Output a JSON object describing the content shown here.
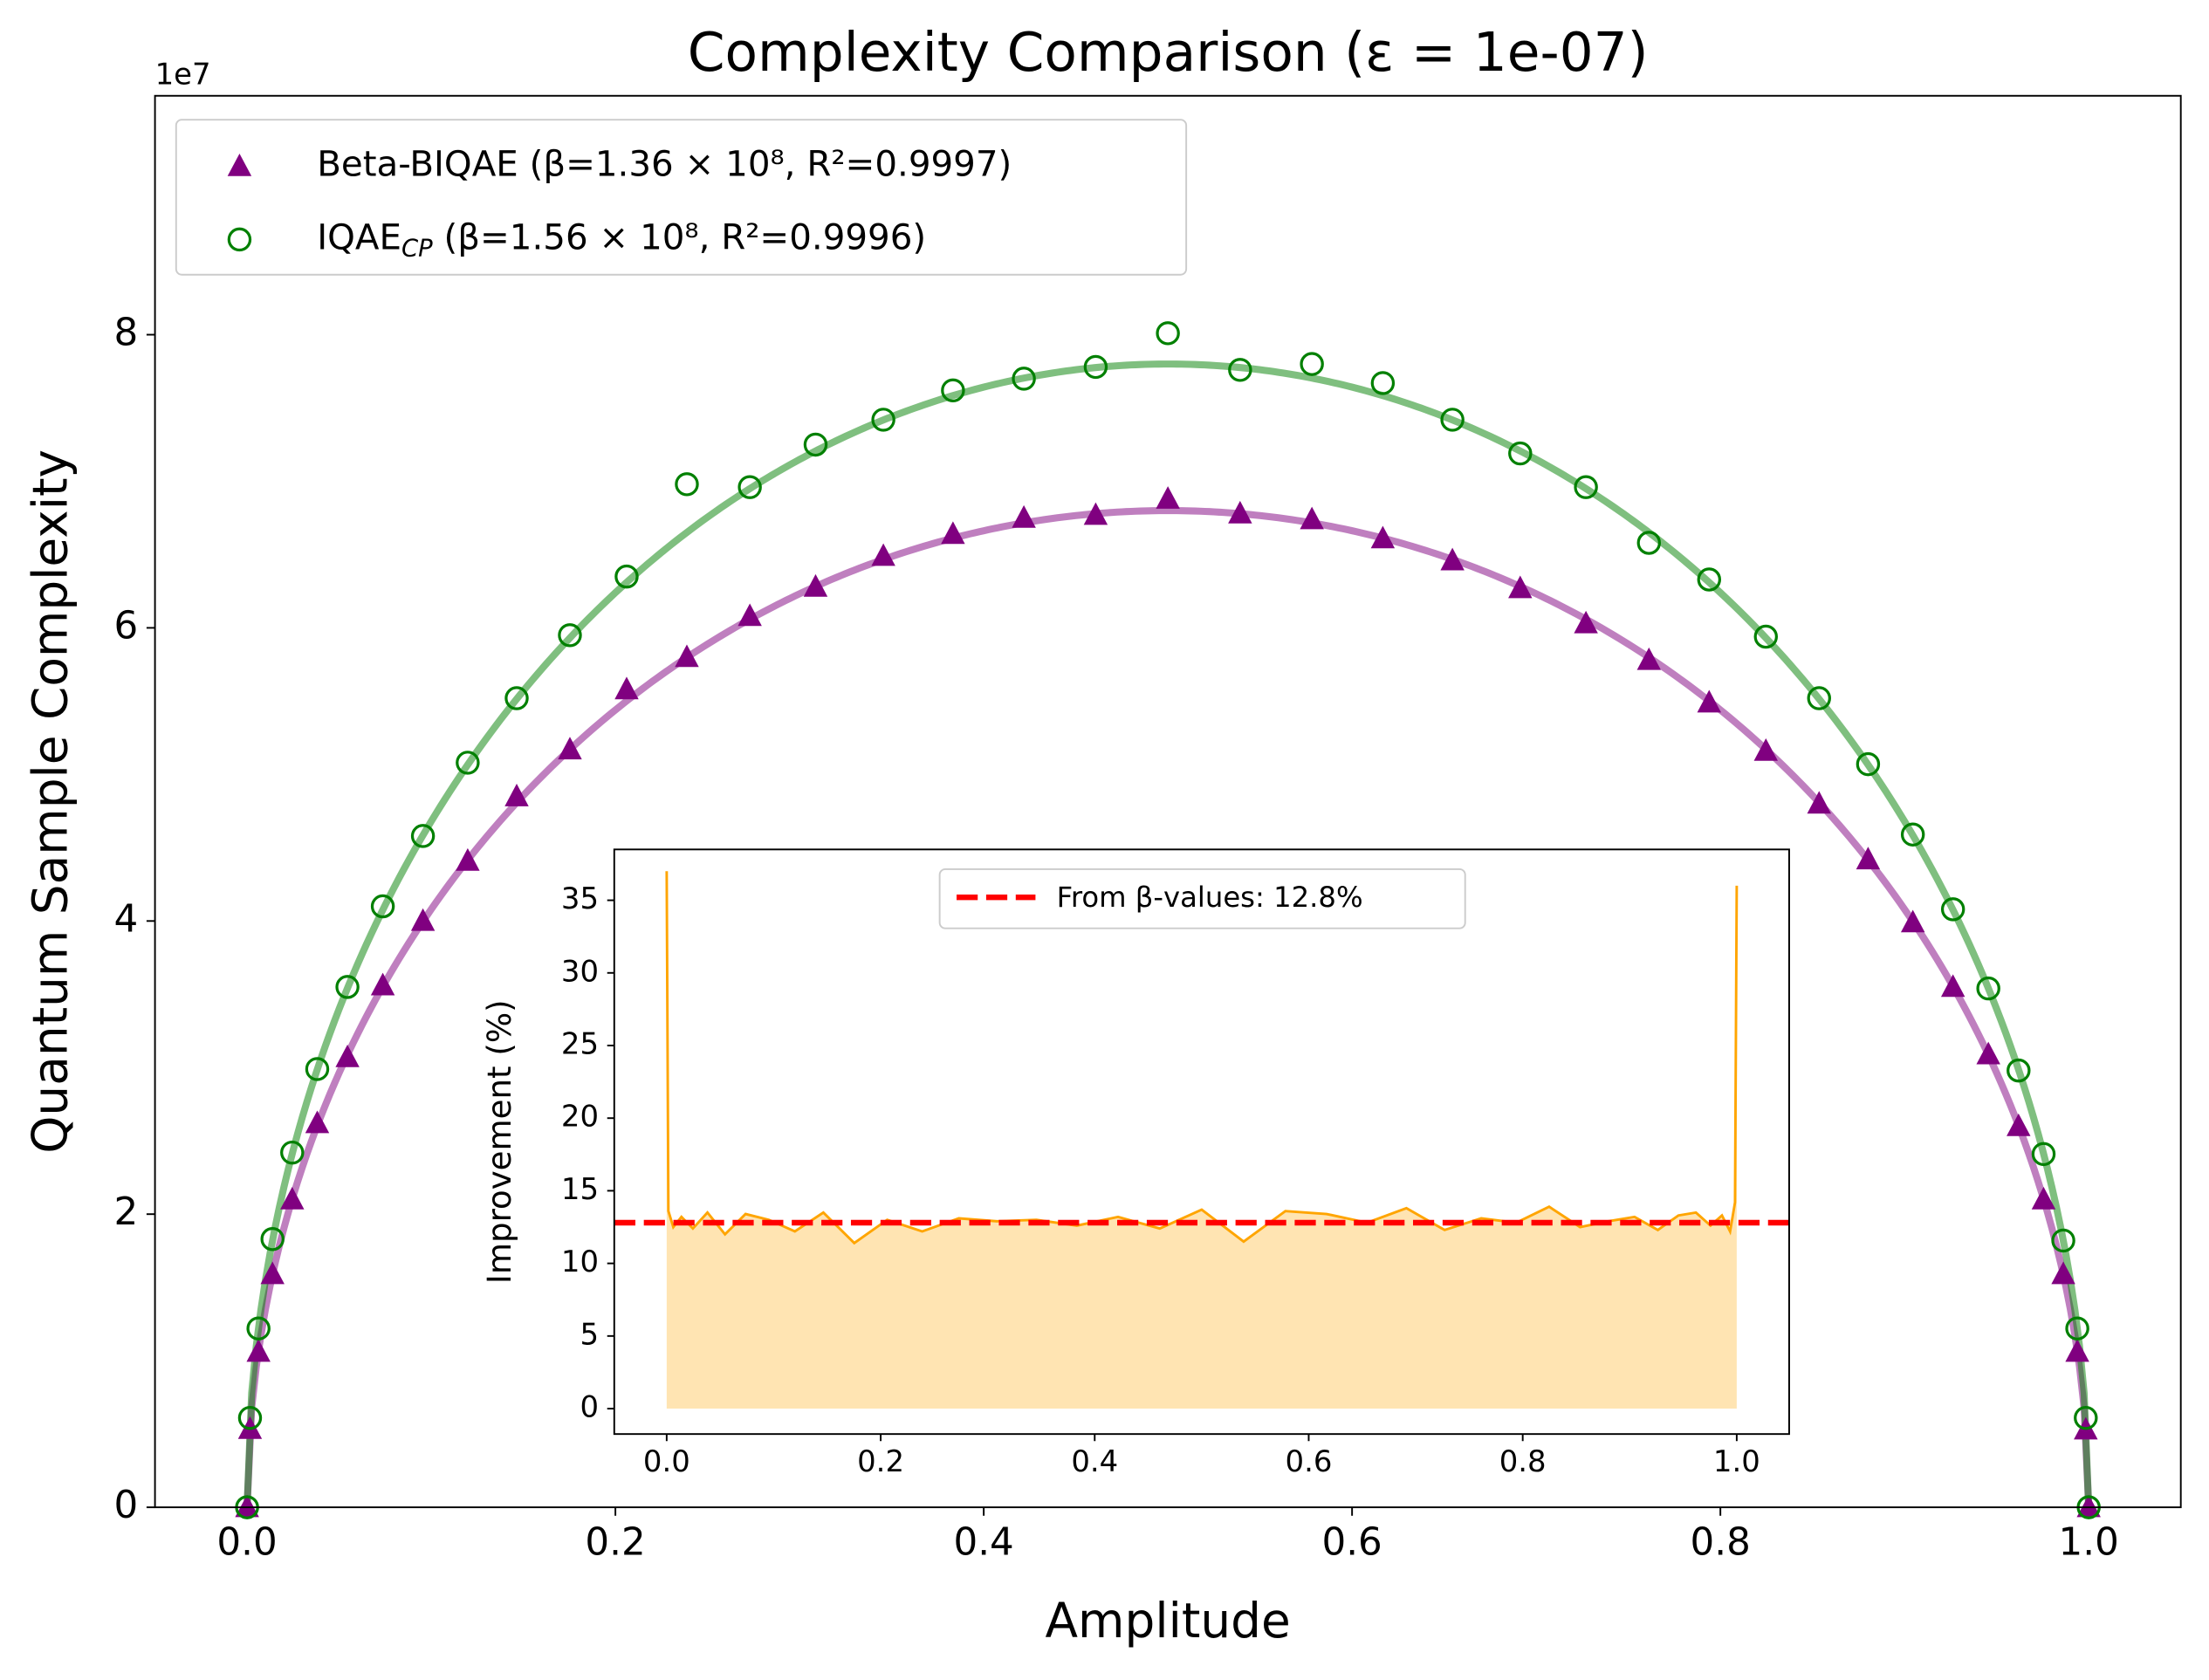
{
  "chart_data": [
    {
      "type": "scatter",
      "title": "Complexity Comparison (ε = 1e-07)",
      "x_label": "Amplitude",
      "y_label": "Quantum Sample Complexity",
      "y_offset_label": "1e7",
      "xlim": [
        -0.05,
        1.05
      ],
      "ylim": [
        0,
        96300000
      ],
      "xticks": [
        {
          "value": 0,
          "label": "0.0"
        },
        0.2,
        0.4,
        0.6,
        0.8,
        {
          "value": 1,
          "label": "1.0"
        }
      ],
      "yticks": [
        {
          "value": 0,
          "label": "0"
        },
        {
          "value": 20000000,
          "label": "2"
        },
        {
          "value": 40000000,
          "label": "4"
        },
        {
          "value": 60000000,
          "label": "6"
        },
        {
          "value": 80000000,
          "label": "8"
        }
      ],
      "legend": "upper left",
      "x": [
        0,
        0.0016,
        0.0062,
        0.0138,
        0.0245,
        0.0381,
        0.0545,
        0.0737,
        0.0955,
        0.1198,
        0.1464,
        0.1753,
        0.2061,
        0.2388,
        0.273,
        0.3087,
        0.3455,
        0.3833,
        0.4218,
        0.4608,
        0.5,
        0.5392,
        0.5782,
        0.6167,
        0.6545,
        0.6913,
        0.727,
        0.7612,
        0.7939,
        0.8247,
        0.8536,
        0.8802,
        0.9045,
        0.9263,
        0.9455,
        0.9619,
        0.9755,
        0.9862,
        0.9938,
        0.9984,
        1
      ],
      "series": [
        {
          "name": "Beta-BIQAE (β=1.36 × 10⁸, R²=0.9997)",
          "color": "#800080",
          "marker": "triangle",
          "fit_beta": 136000000,
          "values": [
            0,
            5340000.0,
            10600000.0,
            15900000.0,
            21000000.0,
            26200000.0,
            30700000.0,
            35600000.0,
            40000000.0,
            44100000.0,
            48500000.0,
            51700000.0,
            55800000.0,
            58000000.0,
            60800000.0,
            62800000.0,
            64900000.0,
            66400000.0,
            67500000.0,
            67700000.0,
            68800000.0,
            67800000.0,
            67400000.0,
            66100000.0,
            64600000.0,
            62700000.0,
            60300000.0,
            57800000.0,
            54900000.0,
            51600000.0,
            48000000.0,
            44200000.0,
            39900000.0,
            35500000.0,
            30900000.0,
            26000000.0,
            21000000.0,
            15900000.0,
            10600000.0,
            5300000.0,
            0
          ]
        },
        {
          "name": "IQAE",
          "name_subscript": "CP",
          "name_suffix": " (β=1.56 × 10⁸, R²=0.9996)",
          "color": "#008000",
          "marker": "circle",
          "fit_beta": 156000000,
          "values": [
            0,
            6100000.0,
            12200000.0,
            18300000.0,
            24200000.0,
            29900000.0,
            35500000.0,
            41000000.0,
            45800000.0,
            50800000.0,
            55200000.0,
            59500000.0,
            63500000.0,
            69800000.0,
            69600000.0,
            72500000.0,
            74200000.0,
            76200000.0,
            77000000.0,
            77800000.0,
            80100000.0,
            77600000.0,
            78000000.0,
            76700000.0,
            74200000.0,
            71900000.0,
            69600000.0,
            65800000.0,
            63300000.0,
            59400000.0,
            55200000.0,
            50700000.0,
            45900000.0,
            40800000.0,
            35400000.0,
            29800000.0,
            24100000.0,
            18200000.0,
            12200000.0,
            6100000.0,
            0
          ]
        }
      ]
    },
    {
      "type": "line",
      "y_label": "Improvement (%)",
      "color": "orange",
      "xlim": [
        -0.049,
        1.049
      ],
      "ylim": [
        -1.75,
        38.5
      ],
      "xticks": [
        {
          "value": 0,
          "label": "0.0"
        },
        0.2,
        0.4,
        0.6,
        0.8,
        {
          "value": 1,
          "label": "1.0"
        }
      ],
      "yticks": [
        0,
        5,
        10,
        15,
        20,
        25,
        30,
        35
      ],
      "x": [
        0,
        0.0016,
        0.0062,
        0.0138,
        0.0245,
        0.0381,
        0.0545,
        0.0737,
        0.0955,
        0.1198,
        0.1464,
        0.1753,
        0.2061,
        0.2388,
        0.273,
        0.3087,
        0.3455,
        0.3833,
        0.4218,
        0.4608,
        0.5,
        0.5392,
        0.5782,
        0.6167,
        0.6545,
        0.6913,
        0.727,
        0.7612,
        0.7939,
        0.8247,
        0.8536,
        0.8802,
        0.9045,
        0.9263,
        0.9455,
        0.9619,
        0.9755,
        0.9862,
        0.9938,
        0.9984,
        1
      ],
      "values": [
        37,
        13.6,
        12.5,
        13.2,
        12.4,
        13.5,
        12.0,
        13.4,
        13.0,
        12.2,
        13.5,
        11.4,
        13.0,
        12.2,
        13.1,
        12.9,
        13.0,
        12.6,
        13.2,
        12.4,
        13.7,
        11.5,
        13.6,
        13.4,
        12.8,
        13.8,
        12.3,
        13.1,
        12.8,
        13.9,
        12.5,
        12.9,
        13.2,
        12.3,
        13.3,
        13.5,
        12.6,
        13.3,
        12.2,
        14.2,
        36
      ],
      "reference": 12.8,
      "reference_label": "From β-values: 12.8%",
      "reference_color": "red",
      "legend": "upper center"
    }
  ]
}
